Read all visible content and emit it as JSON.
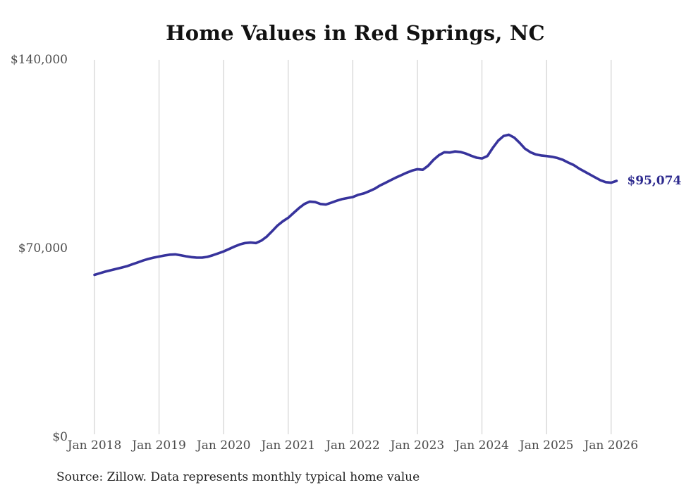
{
  "chart_data": {
    "type": "line",
    "title": "Home Values in Red Springs, NC",
    "source_note": "Source: Zillow. Data represents monthly typical home value",
    "end_label": "$95,074",
    "end_value": 95074,
    "ylim": [
      0,
      140000
    ],
    "grid": "vertical-only",
    "x_range": {
      "start": "Jan 2018",
      "end": "Feb 2026",
      "interval": "monthly"
    },
    "x_tick_labels": [
      "Jan 2018",
      "Jan 2019",
      "Jan 2020",
      "Jan 2021",
      "Jan 2022",
      "Jan 2023",
      "Jan 2024",
      "Jan 2025",
      "Jan 2026"
    ],
    "y_ticks": [
      {
        "value": 140000,
        "label": "$140,000"
      },
      {
        "value": 70000,
        "label": "$70,000"
      },
      {
        "value": 0,
        "label": "$0"
      }
    ],
    "series": [
      {
        "name": "Monthly typical home value",
        "start_month": "2018-01",
        "values": [
          60200,
          60800,
          61400,
          61900,
          62400,
          62900,
          63400,
          64100,
          64800,
          65500,
          66100,
          66600,
          67000,
          67400,
          67700,
          67800,
          67500,
          67100,
          66800,
          66600,
          66600,
          66900,
          67500,
          68200,
          68900,
          69800,
          70700,
          71500,
          72000,
          72200,
          72000,
          72900,
          74400,
          76400,
          78500,
          80100,
          81400,
          83200,
          85000,
          86500,
          87400,
          87200,
          86500,
          86300,
          87000,
          87700,
          88300,
          88700,
          89100,
          89900,
          90400,
          91200,
          92100,
          93300,
          94300,
          95300,
          96300,
          97200,
          98100,
          98900,
          99400,
          99200,
          100700,
          102900,
          104600,
          105700,
          105600,
          106000,
          105800,
          105200,
          104400,
          103700,
          103400,
          104300,
          107300,
          110000,
          111700,
          112200,
          111100,
          109200,
          107000,
          105700,
          104900,
          104500,
          104300,
          104000,
          103600,
          102900,
          101900,
          101000,
          99700,
          98600,
          97500,
          96400,
          95300,
          94600,
          94400,
          95074
        ]
      }
    ],
    "colors": {
      "line": "#37339c",
      "end_label": "#2d2a8e",
      "gridline": "#c9c9c9",
      "title": "#111111",
      "tick_label": "#4c4c4c",
      "source": "#222222",
      "background": "#ffffff"
    }
  }
}
